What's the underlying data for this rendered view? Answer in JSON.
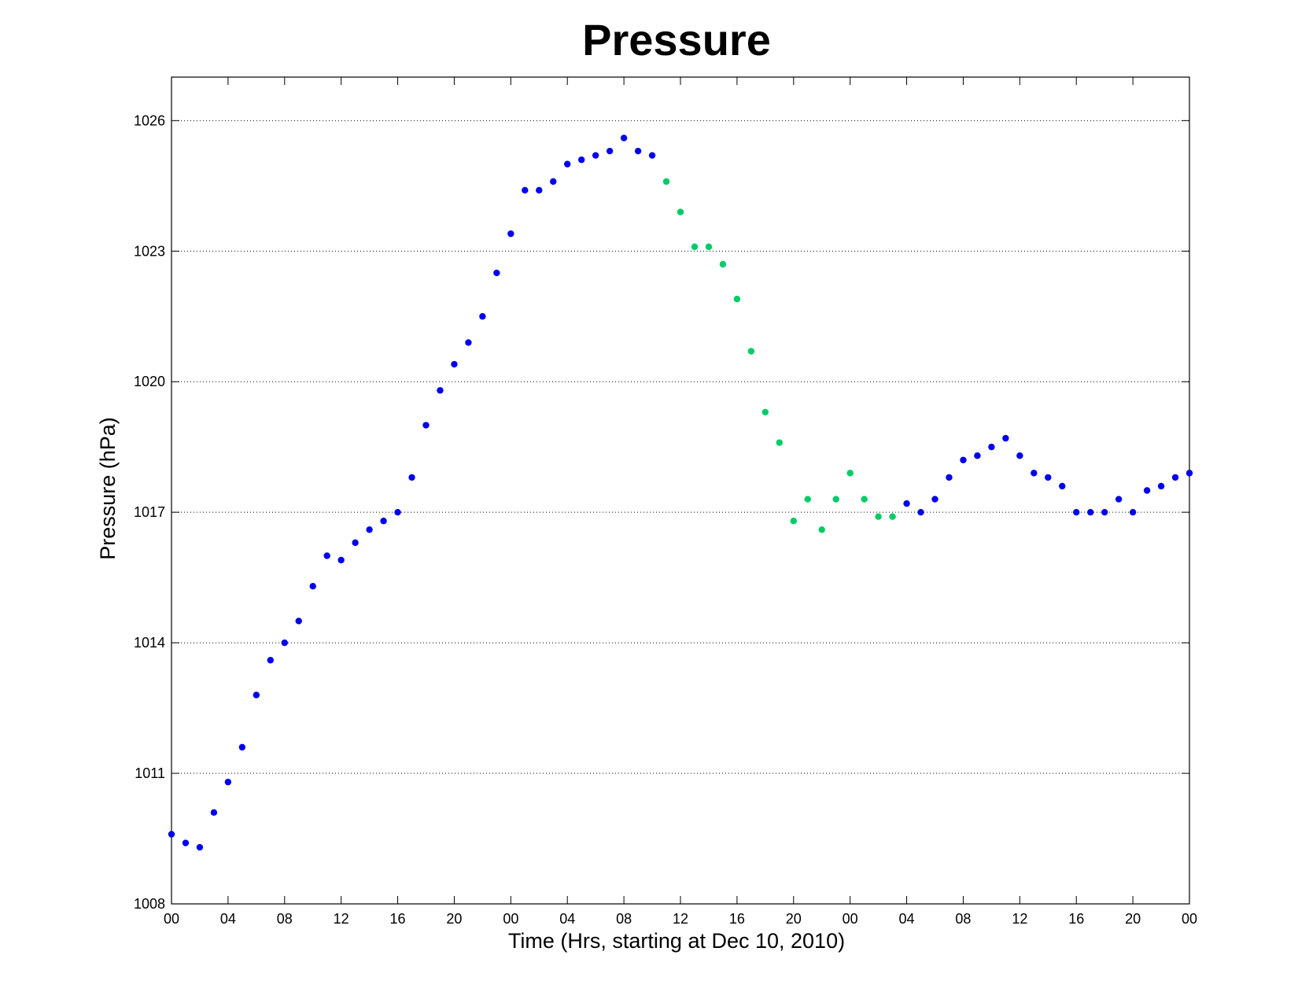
{
  "chart_data": {
    "type": "scatter",
    "title": "Pressure",
    "xlabel": "Time (Hrs, starting at Dec 10, 2010)",
    "ylabel": "Pressure (hPa)",
    "x_unit": "hours",
    "xlim": [
      0,
      72
    ],
    "ylim": [
      1008,
      1027
    ],
    "yticks": [
      1008,
      1011,
      1014,
      1017,
      1020,
      1023,
      1026
    ],
    "xticks": [
      {
        "value": 0,
        "label": "00"
      },
      {
        "value": 4,
        "label": "04"
      },
      {
        "value": 8,
        "label": "08"
      },
      {
        "value": 12,
        "label": "12"
      },
      {
        "value": 16,
        "label": "16"
      },
      {
        "value": 20,
        "label": "20"
      },
      {
        "value": 24,
        "label": "00"
      },
      {
        "value": 28,
        "label": "04"
      },
      {
        "value": 32,
        "label": "08"
      },
      {
        "value": 36,
        "label": "12"
      },
      {
        "value": 40,
        "label": "16"
      },
      {
        "value": 44,
        "label": "20"
      },
      {
        "value": 48,
        "label": "00"
      },
      {
        "value": 52,
        "label": "04"
      },
      {
        "value": 56,
        "label": "08"
      },
      {
        "value": 60,
        "label": "12"
      },
      {
        "value": 64,
        "label": "16"
      },
      {
        "value": 68,
        "label": "20"
      },
      {
        "value": 72,
        "label": "00"
      }
    ],
    "grid": "y-dotted",
    "legend": "none",
    "series": [
      {
        "color": "#0000ee",
        "x": [
          0,
          1,
          2,
          3,
          4,
          5,
          6,
          7,
          8,
          9,
          10,
          11,
          12,
          13,
          14,
          15,
          16,
          17,
          18,
          19,
          20,
          21,
          22,
          23,
          24,
          25,
          26,
          27,
          28,
          29,
          30,
          31,
          32,
          33,
          34,
          52,
          53,
          54,
          55,
          56,
          57,
          58,
          59,
          60,
          61,
          62,
          63,
          64,
          65,
          66,
          67,
          68,
          69,
          70,
          71,
          72
        ],
        "y": [
          1009.6,
          1009.4,
          1009.3,
          1010.1,
          1010.8,
          1011.6,
          1012.8,
          1013.6,
          1014.0,
          1014.5,
          1015.3,
          1016.0,
          1015.9,
          1016.3,
          1016.6,
          1016.8,
          1017.0,
          1017.8,
          1019.0,
          1019.8,
          1020.4,
          1020.9,
          1021.5,
          1022.5,
          1023.4,
          1024.4,
          1024.4,
          1024.6,
          1025.0,
          1025.1,
          1025.2,
          1025.3,
          1025.6,
          1025.3,
          1025.2,
          1017.2,
          1017.0,
          1017.3,
          1017.8,
          1018.2,
          1018.3,
          1018.5,
          1018.7,
          1018.3,
          1017.9,
          1017.8,
          1017.6,
          1017.0,
          1017.0,
          1017.0,
          1017.3,
          1017.0,
          1017.5,
          1017.6,
          1017.8,
          1017.9
        ]
      },
      {
        "color": "#00cc66",
        "x": [
          35,
          36,
          37,
          38,
          39,
          40,
          41,
          42,
          43,
          44,
          45,
          46,
          47,
          48,
          49,
          50,
          51
        ],
        "y": [
          1024.6,
          1023.9,
          1023.1,
          1023.1,
          1022.7,
          1021.9,
          1020.7,
          1019.3,
          1018.6,
          1016.8,
          1017.3,
          1016.6,
          1017.3,
          1017.9,
          1017.3,
          1016.9,
          1016.9
        ]
      }
    ]
  }
}
